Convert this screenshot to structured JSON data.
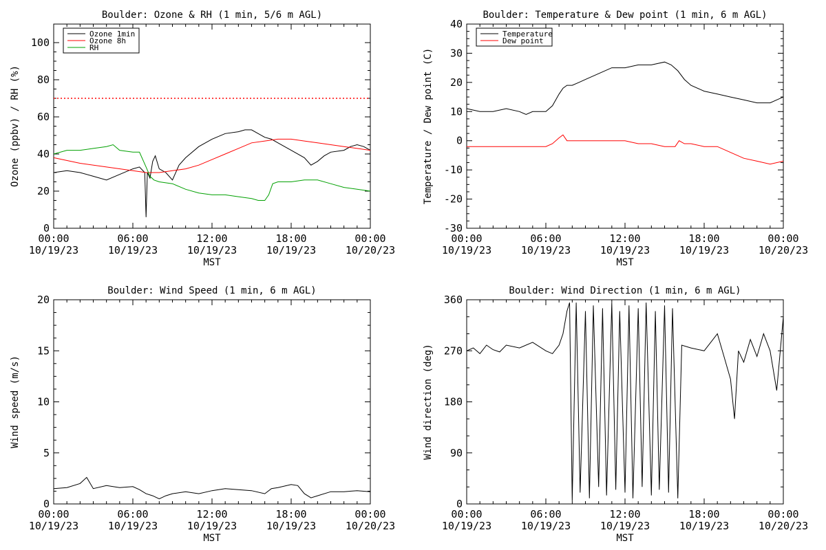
{
  "chart_data": [
    {
      "type": "line",
      "title": "Boulder: Ozone & RH (1 min, 5/6 m AGL)",
      "xlabel": "MST",
      "ylabel": "Ozone (ppbv) / RH (%)",
      "ylim": [
        0,
        110
      ],
      "yticks": [
        0,
        20,
        40,
        60,
        80,
        100
      ],
      "x_range_hours": [
        0,
        24
      ],
      "xticks": [
        {
          "time": "00:00",
          "date": "10/19/23"
        },
        {
          "time": "06:00",
          "date": "10/19/23"
        },
        {
          "time": "12:00",
          "date": "10/19/23"
        },
        {
          "time": "18:00",
          "date": "10/19/23"
        },
        {
          "time": "00:00",
          "date": "10/20/23"
        }
      ],
      "legend_position": "top-left",
      "reference_line": {
        "y": 70,
        "color": "#ff0000",
        "style": "dotted"
      },
      "series": [
        {
          "name": "Ozone 1min",
          "color": "#000000",
          "x": [
            0,
            1,
            2,
            3,
            4,
            5,
            6,
            6.5,
            6.9,
            7.0,
            7.1,
            7.3,
            7.5,
            7.7,
            8,
            8.5,
            9,
            9.5,
            10,
            11,
            12,
            13,
            14,
            14.5,
            15,
            15.5,
            16,
            16.5,
            17,
            18,
            19,
            19.5,
            20,
            20.5,
            21,
            22,
            22.5,
            23,
            23.5,
            24
          ],
          "y": [
            30,
            31,
            30,
            28,
            26,
            29,
            32,
            33,
            30,
            6,
            30,
            27,
            36,
            39,
            32,
            30,
            26,
            34,
            38,
            44,
            48,
            51,
            52,
            53,
            53,
            51,
            49,
            48,
            46,
            42,
            38,
            34,
            36,
            39,
            41,
            42,
            44,
            45,
            44,
            42
          ]
        },
        {
          "name": "Ozone 8h",
          "color": "#ff0000",
          "x": [
            0,
            2,
            4,
            6,
            7,
            8,
            9,
            10,
            11,
            12,
            13,
            14,
            15,
            16,
            17,
            18,
            19,
            20,
            21,
            22,
            23,
            24
          ],
          "y": [
            38,
            35,
            33,
            31,
            30,
            30,
            31,
            32,
            34,
            37,
            40,
            43,
            46,
            47,
            48,
            48,
            47,
            46,
            45,
            44,
            43,
            42
          ]
        },
        {
          "name": "RH",
          "color": "#00a000",
          "x": [
            0,
            1,
            2,
            3,
            4,
            4.5,
            5,
            6,
            6.5,
            7,
            7.3,
            7.6,
            8,
            9,
            10,
            11,
            12,
            13,
            14,
            15,
            15.5,
            16,
            16.3,
            16.6,
            17,
            18,
            19,
            20,
            21,
            22,
            23,
            24
          ],
          "y": [
            40,
            42,
            42,
            43,
            44,
            45,
            42,
            41,
            41,
            33,
            28,
            26,
            25,
            24,
            21,
            19,
            18,
            18,
            17,
            16,
            15,
            15,
            18,
            24,
            25,
            25,
            26,
            26,
            24,
            22,
            21,
            20
          ]
        }
      ]
    },
    {
      "type": "line",
      "title": "Boulder: Temperature & Dew point (1 min, 6 m AGL)",
      "xlabel": "MST",
      "ylabel": "Temperature / Dew point (C)",
      "ylim": [
        -30,
        40
      ],
      "yticks": [
        -30,
        -20,
        -10,
        0,
        10,
        20,
        30,
        40
      ],
      "x_range_hours": [
        0,
        24
      ],
      "xticks": [
        {
          "time": "00:00",
          "date": "10/19/23"
        },
        {
          "time": "06:00",
          "date": "10/19/23"
        },
        {
          "time": "12:00",
          "date": "10/19/23"
        },
        {
          "time": "18:00",
          "date": "10/19/23"
        },
        {
          "time": "00:00",
          "date": "10/20/23"
        }
      ],
      "legend_position": "top-left",
      "series": [
        {
          "name": "Temperature",
          "color": "#000000",
          "x": [
            0,
            1,
            2,
            3,
            4,
            4.5,
            5,
            5.5,
            6,
            6.5,
            7,
            7.3,
            7.6,
            8,
            8.5,
            9,
            10,
            11,
            12,
            13,
            14,
            15,
            15.5,
            16,
            16.5,
            17,
            18,
            19,
            20,
            21,
            22,
            23,
            23.5,
            24
          ],
          "y": [
            11,
            10,
            10,
            11,
            10,
            9,
            10,
            10,
            10,
            12,
            16,
            18,
            19,
            19,
            20,
            21,
            23,
            25,
            25,
            26,
            26,
            27,
            26,
            24,
            21,
            19,
            17,
            16,
            15,
            14,
            13,
            13,
            14,
            15
          ]
        },
        {
          "name": "Dew point",
          "color": "#ff0000",
          "x": [
            0,
            1,
            2,
            3,
            4,
            5,
            6,
            6.5,
            7,
            7.3,
            7.6,
            8,
            9,
            10,
            11,
            12,
            13,
            14,
            15,
            15.8,
            16.1,
            16.5,
            17,
            18,
            19,
            20,
            21,
            22,
            23,
            24
          ],
          "y": [
            -2,
            -2,
            -2,
            -2,
            -2,
            -2,
            -2,
            -1,
            1,
            2,
            0,
            0,
            0,
            0,
            0,
            0,
            -1,
            -1,
            -2,
            -2,
            0,
            -1,
            -1,
            -2,
            -2,
            -4,
            -6,
            -7,
            -8,
            -7
          ]
        }
      ]
    },
    {
      "type": "line",
      "title": "Boulder: Wind Speed (1 min, 6 m AGL)",
      "xlabel": "MST",
      "ylabel": "Wind speed (m/s)",
      "ylim": [
        0,
        20
      ],
      "yticks": [
        0,
        5,
        10,
        15,
        20
      ],
      "x_range_hours": [
        0,
        24
      ],
      "xticks": [
        {
          "time": "00:00",
          "date": "10/19/23"
        },
        {
          "time": "06:00",
          "date": "10/19/23"
        },
        {
          "time": "12:00",
          "date": "10/19/23"
        },
        {
          "time": "18:00",
          "date": "10/19/23"
        },
        {
          "time": "00:00",
          "date": "10/20/23"
        }
      ],
      "series": [
        {
          "color": "#000000",
          "x": [
            0,
            1,
            2,
            2.5,
            3,
            4,
            5,
            6,
            6.5,
            7,
            7.5,
            8,
            8.5,
            9,
            10,
            11,
            12,
            13,
            14,
            15,
            16,
            16.5,
            17,
            18,
            18.5,
            19,
            19.5,
            20,
            21,
            22,
            23,
            24
          ],
          "y": [
            1.5,
            1.6,
            2,
            2.6,
            1.5,
            1.8,
            1.6,
            1.7,
            1.4,
            1,
            0.8,
            0.5,
            0.8,
            1,
            1.2,
            1,
            1.3,
            1.5,
            1.4,
            1.3,
            1,
            1.5,
            1.6,
            1.9,
            1.8,
            1,
            0.6,
            0.8,
            1.2,
            1.2,
            1.3,
            1.2
          ]
        }
      ]
    },
    {
      "type": "line",
      "title": "Boulder: Wind Direction (1 min, 6 m AGL)",
      "xlabel": "MST",
      "ylabel": "Wind direction (deg)",
      "ylim": [
        0,
        360
      ],
      "yticks": [
        0,
        90,
        180,
        270,
        360
      ],
      "x_range_hours": [
        0,
        24
      ],
      "xticks": [
        {
          "time": "00:00",
          "date": "10/19/23"
        },
        {
          "time": "06:00",
          "date": "10/19/23"
        },
        {
          "time": "12:00",
          "date": "10/19/23"
        },
        {
          "time": "18:00",
          "date": "10/19/23"
        },
        {
          "time": "00:00",
          "date": "10/20/23"
        }
      ],
      "series": [
        {
          "color": "#000000",
          "x": [
            0,
            0.5,
            1,
            1.5,
            2,
            2.5,
            3,
            4,
            5,
            6,
            6.5,
            7,
            7.3,
            7.6,
            7.8,
            8,
            8.3,
            8.6,
            9,
            9.3,
            9.6,
            10,
            10.3,
            10.6,
            11,
            11.3,
            11.6,
            12,
            12.3,
            12.6,
            13,
            13.3,
            13.6,
            14,
            14.3,
            14.6,
            15,
            15.3,
            15.6,
            16,
            16.3,
            17,
            18,
            18.5,
            19,
            19.5,
            20,
            20.3,
            20.6,
            21,
            21.5,
            22,
            22.5,
            23,
            23.5,
            24
          ],
          "y": [
            270,
            275,
            265,
            280,
            272,
            268,
            280,
            275,
            285,
            270,
            265,
            280,
            300,
            340,
            355,
            5,
            355,
            20,
            340,
            10,
            350,
            30,
            345,
            15,
            355,
            25,
            340,
            20,
            350,
            10,
            345,
            30,
            355,
            15,
            340,
            25,
            350,
            20,
            345,
            10,
            280,
            275,
            270,
            285,
            300,
            260,
            220,
            150,
            270,
            250,
            290,
            260,
            300,
            270,
            200,
            330
          ]
        }
      ]
    }
  ]
}
